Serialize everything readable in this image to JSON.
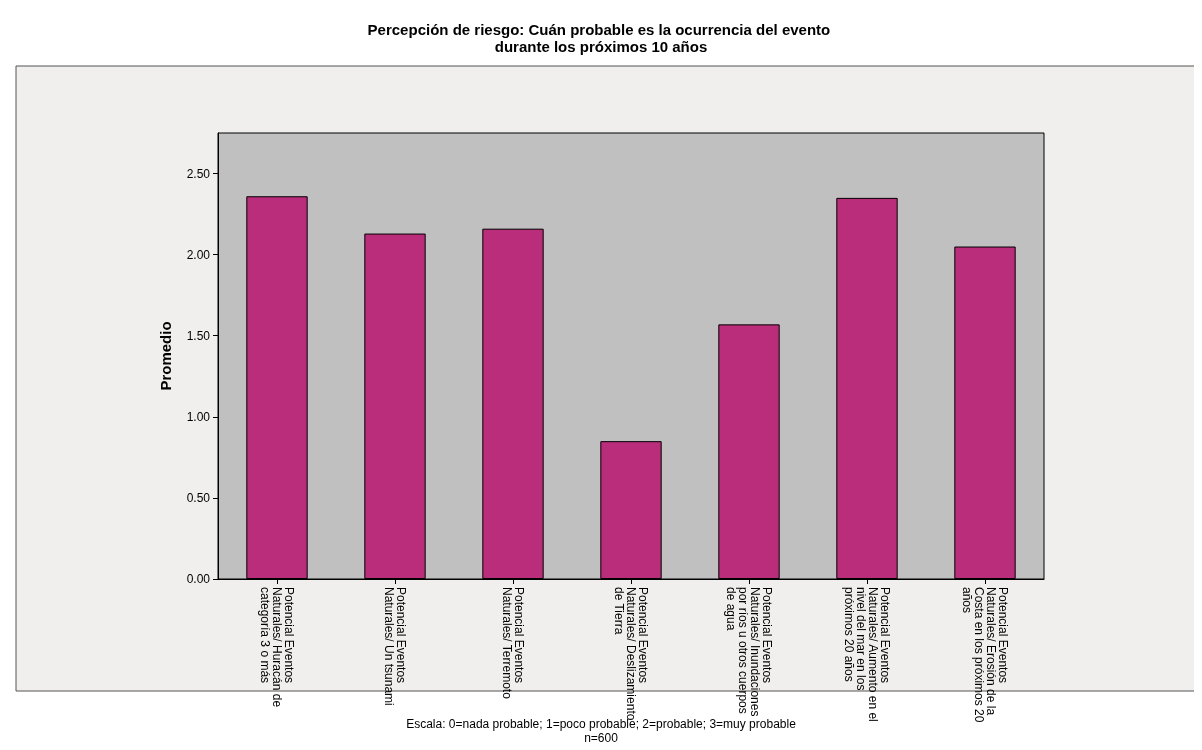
{
  "chart_data": {
    "type": "bar",
    "title": "Percepción de riesgo: Cuán probable es la ocurrencia del evento durante los próximos 10 años",
    "ylabel": "Promedio",
    "categories": [
      "Potencial Eventos Naturales/ Huracán de categoría 3 o más",
      "Potencial Eventos Naturales/ Un tsunami",
      "Potencial Eventos Naturales/ Terremoto",
      "Potencial Eventos Naturales/ Deslizamiento de Tierra",
      "Potencial Eventos Naturales/ Inundaciones por ríos u otros cuerpos de agua",
      "Potencial Eventos Naturales/ Aumento en el nivel del mar en los próximos 20 años",
      "Potencial Eventos Naturales/ Erosión de la Costa en los próximos 20 años"
    ],
    "values": [
      2.36,
      2.13,
      2.16,
      0.85,
      1.57,
      2.35,
      2.05
    ],
    "color": "#b92d7b",
    "ylim": [
      0,
      2.75
    ],
    "yticks": [
      {
        "value": 0,
        "label": "0.00"
      },
      {
        "value": 0.5,
        "label": "0.50"
      },
      {
        "value": 1,
        "label": "1.00"
      },
      {
        "value": 1.5,
        "label": "1.50"
      },
      {
        "value": 2,
        "label": "2.00"
      },
      {
        "value": 2.5,
        "label": "2.50"
      }
    ],
    "grid": false,
    "annotations": [
      "Escala: 0=nada probable; 1=poco probable; 2=probable; 3=muy probable",
      "n=600"
    ]
  }
}
